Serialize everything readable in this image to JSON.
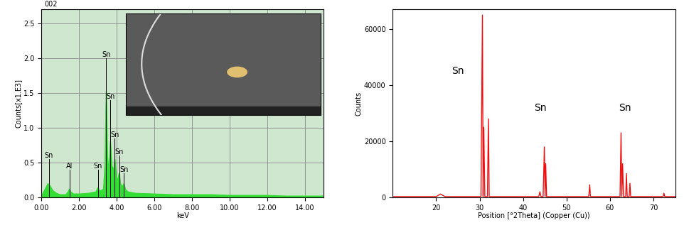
{
  "chart_data": [
    {
      "type": "area",
      "title": "002",
      "xlabel": "keV",
      "ylabel": "Counts[x1.E3]",
      "x": [
        0.0,
        0.2,
        0.35,
        0.45,
        0.6,
        0.8,
        1.0,
        1.3,
        1.42,
        1.49,
        1.56,
        1.7,
        2.0,
        2.5,
        2.9,
        3.0,
        3.1,
        3.3,
        3.38,
        3.44,
        3.5,
        3.58,
        3.66,
        3.74,
        3.84,
        3.9,
        3.97,
        4.05,
        4.13,
        4.2,
        4.3,
        4.38,
        4.45,
        4.6,
        5.0,
        6.0,
        7.0,
        8.0,
        9.0,
        10.0,
        11.0,
        12.0,
        13.0,
        14.0,
        15.0
      ],
      "values": [
        0.02,
        0.12,
        0.2,
        0.17,
        0.1,
        0.06,
        0.04,
        0.04,
        0.08,
        0.12,
        0.08,
        0.05,
        0.05,
        0.06,
        0.08,
        0.14,
        0.09,
        0.12,
        0.5,
        1.52,
        0.6,
        0.35,
        0.8,
        0.45,
        0.4,
        0.55,
        0.3,
        0.25,
        0.35,
        0.2,
        0.15,
        0.2,
        0.12,
        0.08,
        0.06,
        0.05,
        0.04,
        0.04,
        0.04,
        0.03,
        0.03,
        0.03,
        0.02,
        0.02,
        0.02
      ],
      "color": "#33dd33",
      "grid": true,
      "xlim": [
        0,
        15
      ],
      "ylim": [
        0,
        2.7
      ],
      "xticks": [
        {
          "value": 0,
          "label": "0.00"
        },
        {
          "value": 2,
          "label": "2.00"
        },
        {
          "value": 4,
          "label": "4.00"
        },
        {
          "value": 6,
          "label": "6.00"
        },
        {
          "value": 8,
          "label": "8.00"
        },
        {
          "value": 10,
          "label": "10.00"
        },
        {
          "value": 12,
          "label": "12.00"
        },
        {
          "value": 14,
          "label": "14.00"
        }
      ],
      "yticks": [
        {
          "value": 0,
          "label": "0.0"
        },
        0.5,
        {
          "value": 1,
          "label": "1.0"
        },
        1.5,
        {
          "value": 2,
          "label": "2.0"
        },
        2.5
      ],
      "annotations": [
        {
          "text": "Sn",
          "x": 0.4,
          "y": 0.55
        },
        {
          "text": "Al",
          "x": 1.49,
          "y": 0.4
        },
        {
          "text": "Sn",
          "x": 3.0,
          "y": 0.4
        },
        {
          "text": "Sn",
          "x": 3.44,
          "y": 2.0
        },
        {
          "text": "Sn",
          "x": 3.66,
          "y": 1.4
        },
        {
          "text": "Sn",
          "x": 3.9,
          "y": 0.85
        },
        {
          "text": "Sn",
          "x": 4.13,
          "y": 0.6
        },
        {
          "text": "Sn",
          "x": 4.38,
          "y": 0.35
        }
      ]
    },
    {
      "type": "line",
      "xlabel": "Position [°2Theta] (Copper (Cu))",
      "ylabel": "Counts",
      "x": [
        10,
        20,
        21,
        22,
        30.3,
        30.64,
        30.8,
        30.95,
        31.2,
        31.8,
        32.02,
        32.2,
        33,
        43.6,
        43.87,
        44.1,
        44.6,
        44.9,
        45.05,
        45.2,
        45.4,
        50,
        55.1,
        55.33,
        55.5,
        62.3,
        62.54,
        62.7,
        62.9,
        63.1,
        63.6,
        63.78,
        63.95,
        64.4,
        64.58,
        64.75,
        65,
        72.2,
        72.4,
        72.6,
        75
      ],
      "values": [
        300,
        300,
        1200,
        300,
        300,
        65000,
        300,
        25000,
        300,
        300,
        28000,
        300,
        300,
        300,
        2000,
        300,
        300,
        18000,
        300,
        12000,
        300,
        300,
        300,
        4500,
        300,
        300,
        23000,
        300,
        12000,
        300,
        300,
        8500,
        300,
        300,
        5000,
        300,
        300,
        300,
        1500,
        300,
        300
      ],
      "color": "#ee1111",
      "grid": false,
      "xlim": [
        10,
        75
      ],
      "ylim": [
        0,
        67000
      ],
      "xticks": [
        20,
        30,
        40,
        50,
        60,
        70
      ],
      "yticks": [
        0,
        20000,
        40000,
        60000
      ],
      "annotations": [
        {
          "text": "Sn",
          "x": 25,
          "y": 45000
        },
        {
          "text": "Sn",
          "x": 44,
          "y": 32000
        },
        {
          "text": "Sn",
          "x": 63.5,
          "y": 32000
        }
      ]
    }
  ]
}
